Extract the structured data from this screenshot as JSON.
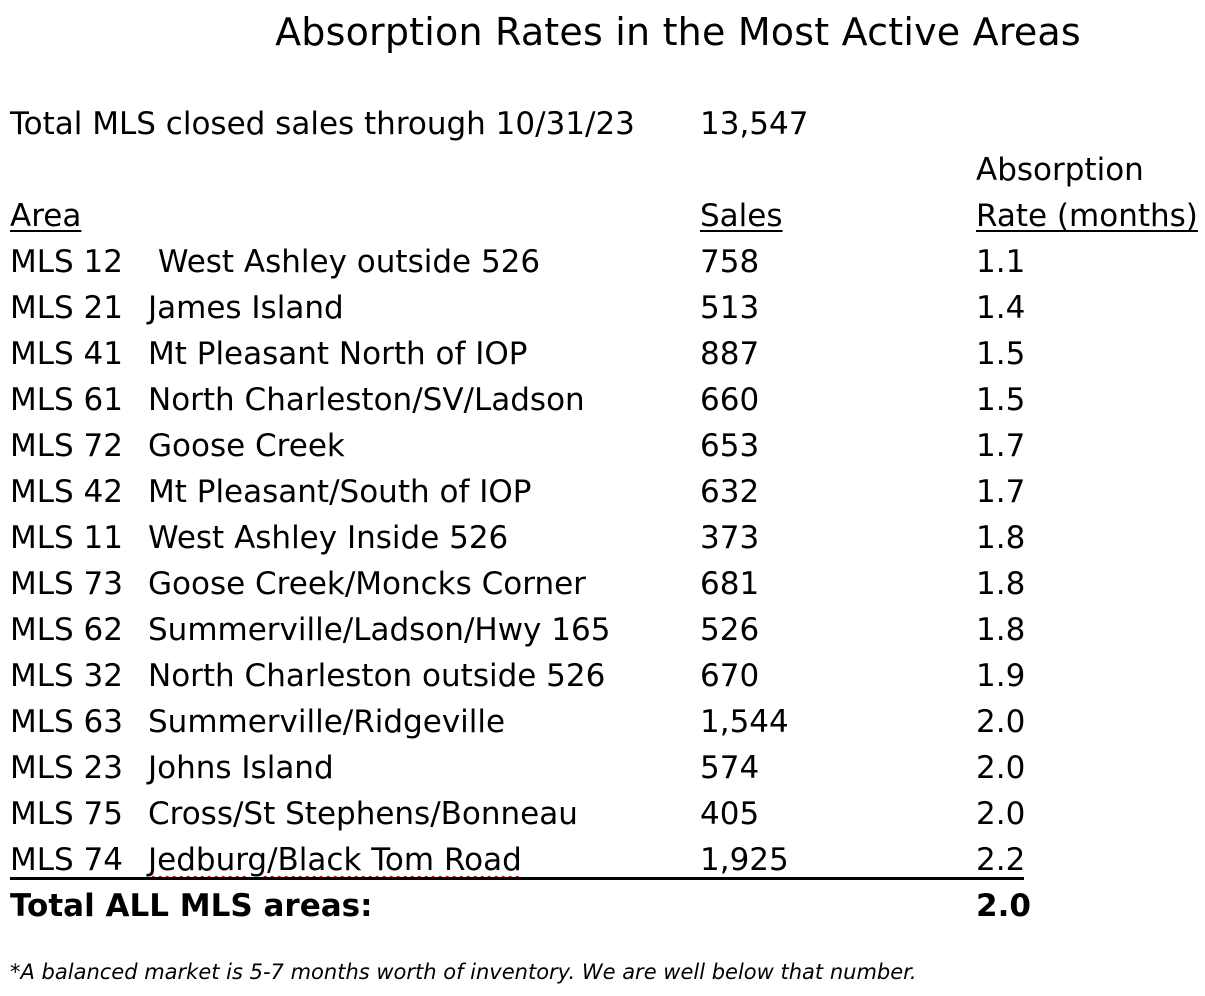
{
  "title": "Absorption Rates in the Most Active Areas",
  "summary": {
    "label": "Total MLS closed sales through 10/31/23",
    "value": "13,547"
  },
  "headers": {
    "area": "Area",
    "sales": "Sales",
    "rate_line1": "Absorption",
    "rate_line2": "Rate (months)"
  },
  "rows": [
    {
      "code": "MLS 12",
      "name": " West Ashley outside 526",
      "sales": "758",
      "rate": "1.1"
    },
    {
      "code": "MLS 21",
      "name": "James Island",
      "sales": "513",
      "rate": "1.4"
    },
    {
      "code": "MLS 41",
      "name": "Mt Pleasant North of IOP",
      "sales": "887",
      "rate": "1.5"
    },
    {
      "code": "MLS 61",
      "name": "North Charleston/SV/Ladson",
      "sales": "660",
      "rate": "1.5"
    },
    {
      "code": "MLS 72",
      "name": "Goose Creek",
      "sales": "653",
      "rate": "1.7"
    },
    {
      "code": "MLS 42",
      "name": "Mt Pleasant/South of IOP",
      "sales": "632",
      "rate": "1.7"
    },
    {
      "code": "MLS 11",
      "name": "West Ashley Inside 526",
      "sales": "373",
      "rate": "1.8"
    },
    {
      "code": "MLS 73",
      "name": "Goose Creek/Moncks Corner",
      "sales": "681",
      "rate": "1.8"
    },
    {
      "code": "MLS 62",
      "name": "Summerville/Ladson/Hwy 165",
      "sales": "526",
      "rate": "1.8"
    },
    {
      "code": "MLS 32",
      "name": "North Charleston outside 526",
      "sales": "670",
      "rate": "1.9"
    },
    {
      "code": "MLS 63",
      "name": "Summerville/Ridgeville",
      "sales": "1,544",
      "rate": "2.0"
    },
    {
      "code": "MLS 23",
      "name": "Johns Island",
      "sales": "574",
      "rate": "2.0"
    },
    {
      "code": "MLS 75",
      "name": "Cross/St Stephens/Bonneau",
      "sales": "405",
      "rate": "2.0"
    },
    {
      "code": "MLS 74",
      "name": "Jedburg/Black Tom Road",
      "sales": "1,925",
      "rate": "2.2"
    }
  ],
  "total_all": {
    "label": "Total ALL MLS areas:",
    "rate": "2.0"
  },
  "footnote": "*A balanced market is 5-7 months worth of inventory. We are well below that number."
}
